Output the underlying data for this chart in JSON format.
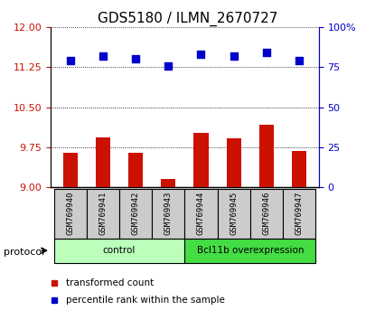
{
  "title": "GDS5180 / ILMN_2670727",
  "samples": [
    "GSM769940",
    "GSM769941",
    "GSM769942",
    "GSM769943",
    "GSM769944",
    "GSM769945",
    "GSM769946",
    "GSM769947"
  ],
  "transformed_count": [
    9.65,
    9.93,
    9.65,
    9.15,
    10.02,
    9.92,
    10.17,
    9.68
  ],
  "percentile_rank": [
    79,
    82,
    80,
    76,
    83,
    82,
    84,
    79
  ],
  "ylim_left": [
    9.0,
    12.0
  ],
  "ylim_right": [
    0,
    100
  ],
  "yticks_left": [
    9.0,
    9.75,
    10.5,
    11.25,
    12.0
  ],
  "yticks_right": [
    0,
    25,
    50,
    75,
    100
  ],
  "groups": [
    {
      "label": "control",
      "indices": [
        0,
        1,
        2,
        3
      ],
      "color": "#bbffbb"
    },
    {
      "label": "Bcl11b overexpression",
      "indices": [
        4,
        5,
        6,
        7
      ],
      "color": "#44dd44"
    }
  ],
  "bar_color": "#cc1100",
  "dot_color": "#0000cc",
  "bar_width": 0.45,
  "sample_bg_color": "#cccccc",
  "protocol_label": "protocol",
  "legend_bar_label": "transformed count",
  "legend_dot_label": "percentile rank within the sample",
  "title_fontsize": 11,
  "axis_left_color": "#cc1100",
  "axis_right_color": "#0000cc"
}
